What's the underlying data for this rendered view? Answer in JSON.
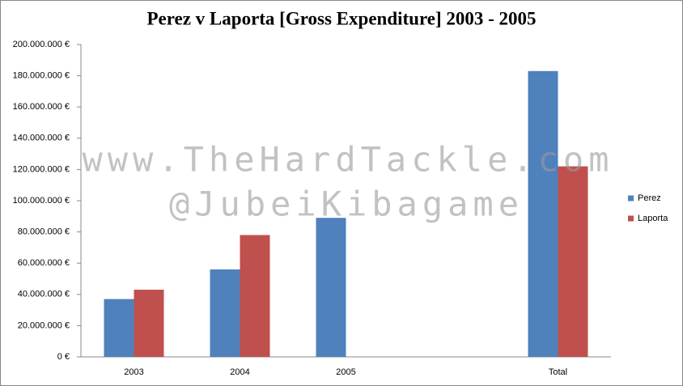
{
  "chart_data": {
    "type": "bar",
    "title": "Perez v Laporta [Gross Expenditure] 2003 - 2005",
    "watermarks": [
      "www.TheHardTackle.com",
      "@JubeiKibagame"
    ],
    "categories": [
      "2003",
      "2004",
      "2005",
      null,
      "Total"
    ],
    "series": [
      {
        "name": "Perez",
        "color": "#4f81bd",
        "values": [
          37000000,
          56000000,
          89000000,
          null,
          183000000
        ]
      },
      {
        "name": "Laporta",
        "color": "#c0504d",
        "values": [
          43000000,
          78000000,
          null,
          null,
          122000000
        ]
      }
    ],
    "ylim": [
      0,
      200000000
    ],
    "yticks": [
      {
        "value": 0,
        "label": "0 €"
      },
      {
        "value": 20000000,
        "label": "20.000.000 €"
      },
      {
        "value": 40000000,
        "label": "40.000.000 €"
      },
      {
        "value": 60000000,
        "label": "60.000.000 €"
      },
      {
        "value": 80000000,
        "label": "80.000.000 €"
      },
      {
        "value": 100000000,
        "label": "100.000.000 €"
      },
      {
        "value": 120000000,
        "label": "120.000.000 €"
      },
      {
        "value": 140000000,
        "label": "140.000.000 €"
      },
      {
        "value": 160000000,
        "label": "160.000.000 €"
      },
      {
        "value": 180000000,
        "label": "180.000.000 €"
      },
      {
        "value": 200000000,
        "label": "200.000.000 €"
      }
    ],
    "grid": false,
    "legend": "right"
  }
}
